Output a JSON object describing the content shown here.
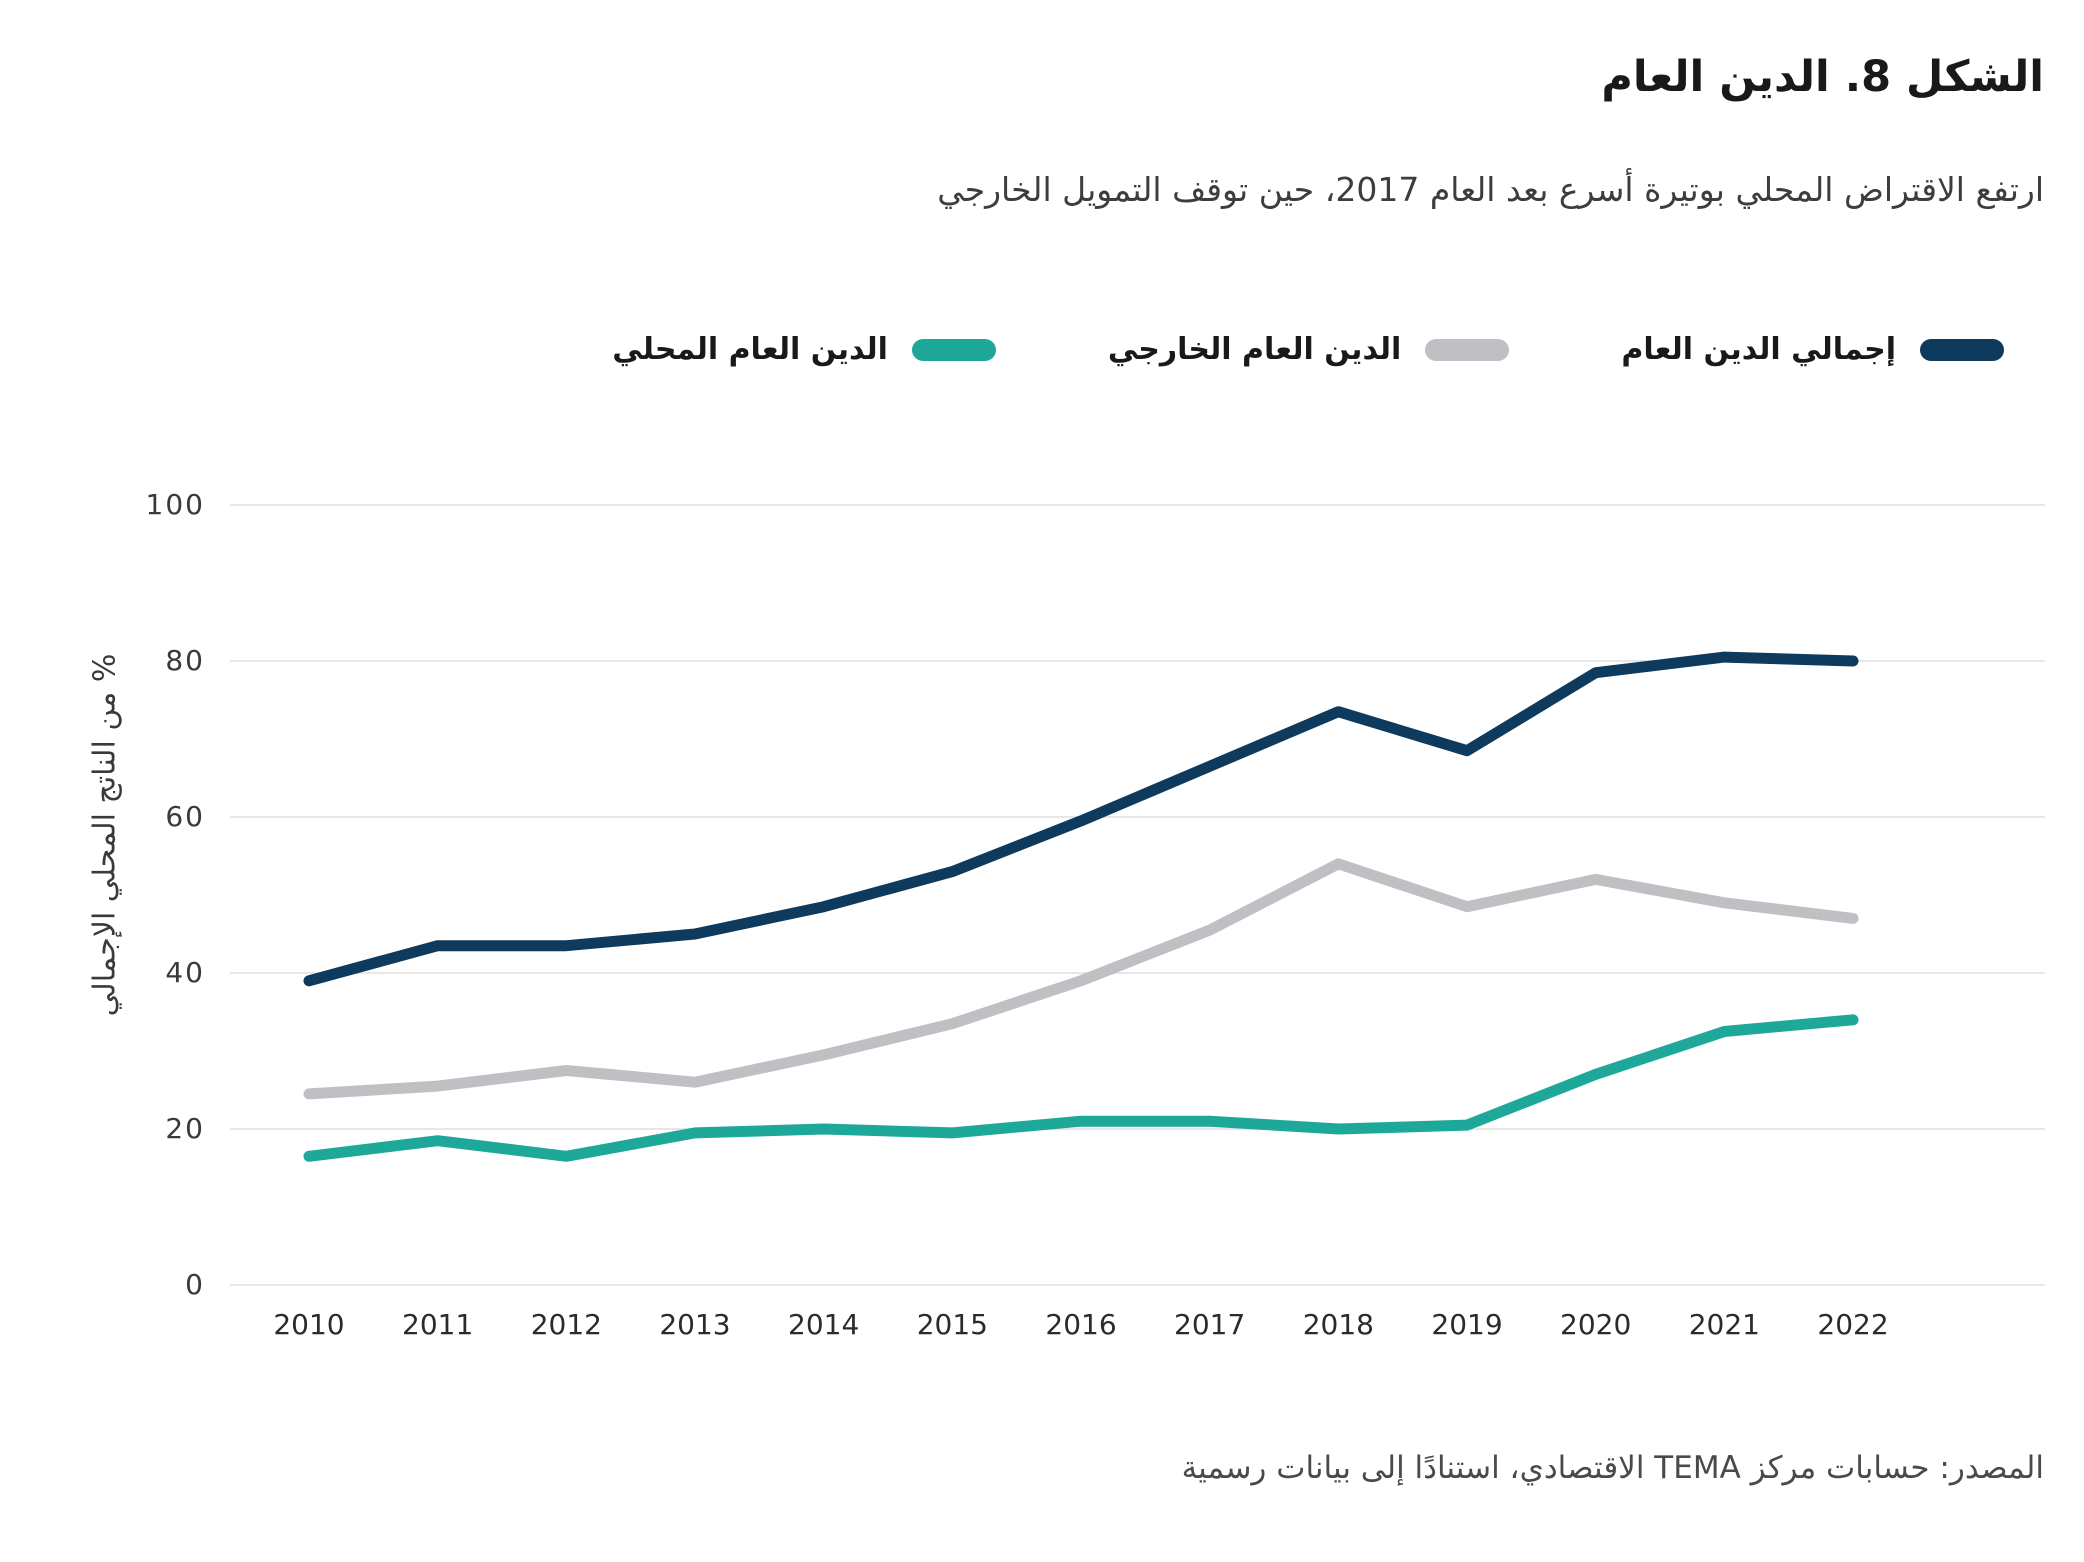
{
  "header": {
    "title": "الشكل 8. الدين العام",
    "subtitle": "ارتفع الاقتراض المحلي بوتيرة أسرع بعد العام 2017، حين توقف التمويل الخارجي"
  },
  "chart_data": {
    "type": "line",
    "x": [
      2010,
      2011,
      2012,
      2013,
      2014,
      2015,
      2016,
      2017,
      2018,
      2019,
      2020,
      2021,
      2022
    ],
    "series": [
      {
        "name": "إجمالي الدين العام",
        "color": "#0d3a5d",
        "values": [
          39,
          43.5,
          43.5,
          45,
          48.5,
          53,
          59.5,
          66.5,
          73.5,
          68.5,
          78.5,
          80.5,
          80
        ]
      },
      {
        "name": "الدين العام الخارجي",
        "color": "#c0c0c4",
        "values": [
          24.5,
          25.5,
          27.5,
          26,
          29.5,
          33.5,
          39,
          45.5,
          54,
          48.5,
          52,
          49,
          47
        ]
      },
      {
        "name": "الدين العام المحلي",
        "color": "#1ea89a",
        "values": [
          16.5,
          18.5,
          16.5,
          19.5,
          20,
          19.5,
          21,
          21,
          20,
          20.5,
          27,
          32.5,
          34
        ]
      }
    ],
    "title": "الشكل 8. الدين العام",
    "xlabel": "",
    "ylabel": "% من الناتج المحلي الإجمالي",
    "yticks": [
      0,
      20,
      40,
      60,
      80,
      100
    ],
    "ylim": [
      0,
      100
    ],
    "grid": true,
    "legend_position": "top"
  },
  "colors": {
    "gridline": "#e7e7e7",
    "background": "#ffffff"
  },
  "footer": {
    "source": "المصدر: حسابات مركز TEMA الاقتصادي، استنادًا إلى بيانات رسمية"
  }
}
